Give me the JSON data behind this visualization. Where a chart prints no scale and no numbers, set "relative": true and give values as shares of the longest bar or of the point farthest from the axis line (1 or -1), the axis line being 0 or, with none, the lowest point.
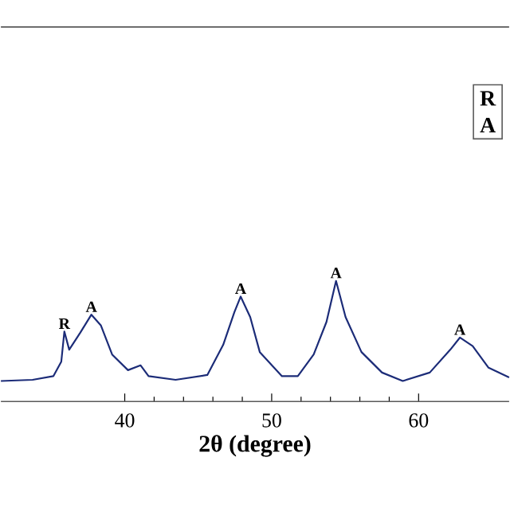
{
  "chart_data": {
    "type": "line",
    "relative": true,
    "color": "#1c2c78",
    "xlabel": "2θ (degree)",
    "xlim": [
      31.57,
      66.16
    ],
    "xticks": [
      40,
      50,
      60
    ],
    "x": [
      31.57,
      33.73,
      35.14,
      35.68,
      35.89,
      36.22,
      36.97,
      37.73,
      38.38,
      39.14,
      40.22,
      41.08,
      41.62,
      43.46,
      45.62,
      46.7,
      47.46,
      47.89,
      48.54,
      49.19,
      50.7,
      51.78,
      52.86,
      53.73,
      54.38,
      55.03,
      56.11,
      57.51,
      58.92,
      60.76,
      62.16,
      62.81,
      63.68,
      64.76,
      66.16
    ],
    "values": [
      0.17,
      0.18,
      0.21,
      0.33,
      0.58,
      0.43,
      0.57,
      0.72,
      0.63,
      0.39,
      0.26,
      0.3,
      0.21,
      0.18,
      0.22,
      0.47,
      0.74,
      0.87,
      0.7,
      0.41,
      0.21,
      0.21,
      0.39,
      0.66,
      1.0,
      0.7,
      0.41,
      0.24,
      0.17,
      0.24,
      0.43,
      0.53,
      0.46,
      0.28,
      0.2
    ],
    "annotations": [
      {
        "text": "R",
        "x": 35.89,
        "y": 0.58
      },
      {
        "text": "A",
        "x": 37.73,
        "y": 0.72
      },
      {
        "text": "A",
        "x": 47.89,
        "y": 0.87
      },
      {
        "text": "A",
        "x": 54.38,
        "y": 1.0
      },
      {
        "text": "A",
        "x": 62.81,
        "y": 0.53
      },
      "R",
      "A"
    ]
  }
}
